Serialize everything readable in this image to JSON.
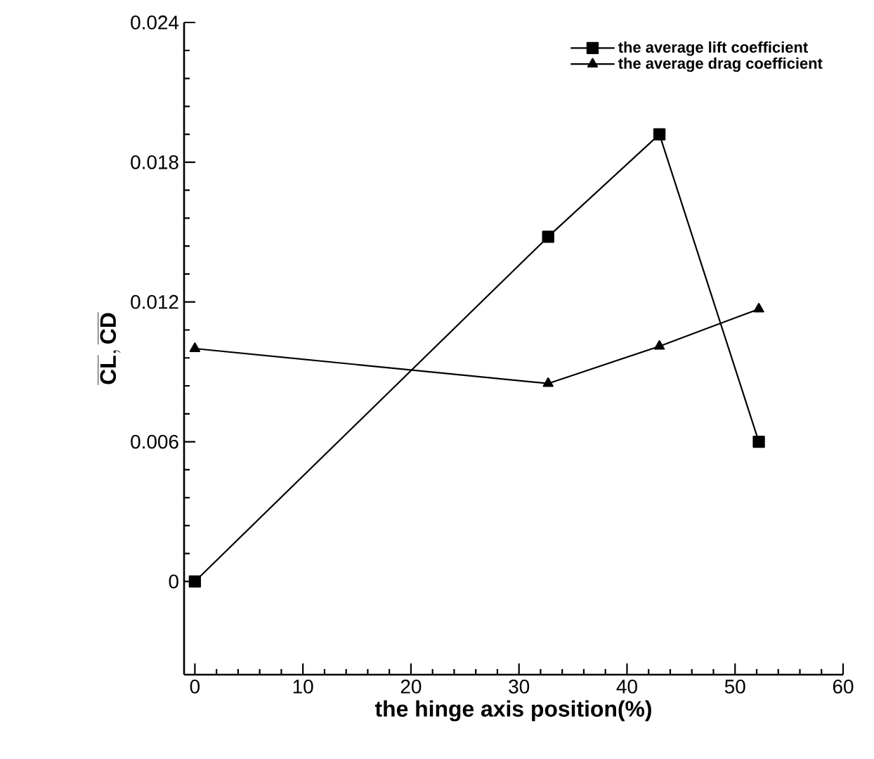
{
  "chart_data": {
    "type": "line",
    "xlabel": "the hinge axis position(%)",
    "ylabel": "\\overline{\\mathbf{CL}},\\overline{\\mathbf{CD}}",
    "series": [
      {
        "name": "the average lift coefficient",
        "color": "#000000",
        "marker": "square",
        "x": [
          0,
          32.7,
          43,
          52.2
        ],
        "values": [
          0,
          0.0148,
          0.0192,
          0.006
        ]
      },
      {
        "name": "the average drag coefficient",
        "color": "#000000",
        "marker": "triangle",
        "x": [
          0,
          32.7,
          43,
          52.2
        ],
        "values": [
          0.01,
          0.0085,
          0.0101,
          0.0117
        ]
      }
    ],
    "xlim": [
      -1,
      60
    ],
    "ylim": [
      -0.004,
      0.024
    ],
    "xticks": [
      0,
      10,
      20,
      30,
      40,
      50,
      60
    ],
    "yticks": [
      0,
      0.006,
      0.012,
      0.018,
      0.024
    ],
    "grid": false,
    "legend": "top right",
    "line_style": "solid"
  }
}
